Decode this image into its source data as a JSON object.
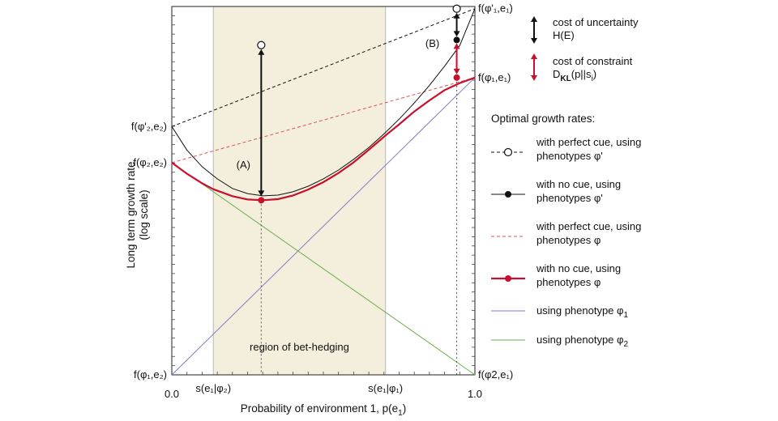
{
  "chart_data": {
    "type": "line",
    "xlabel": "Probability of environment 1, p(e",
    "xlabel_sub": "1",
    "xlabel_tail": ")",
    "ylabel_line1": "Long term growth rate",
    "ylabel_line2": "(log scale)",
    "xlim": [
      0,
      1
    ],
    "ylim": [
      0,
      1
    ],
    "x_ticks": [
      {
        "value": 0.0,
        "label": "0.0"
      },
      {
        "value": 1.0,
        "label": "1.0"
      }
    ],
    "bet_hedging_region": {
      "x_start": 0.137,
      "x_end": 0.705,
      "start_label": "s(e₁|φ₂)",
      "end_label": "s(e₁|φ₁)",
      "region_label": "region of bet-hedging",
      "color": "#f3efdc",
      "border_color": "#b8b8b8"
    },
    "left_axis_labels": [
      {
        "text": "f(φ'₂,e₂)",
        "y": 0.674
      },
      {
        "text": "f(φ₂,e₂)",
        "y": 0.576
      },
      {
        "text": "f(φ₁,e₂)",
        "y": 0.0
      }
    ],
    "right_axis_labels": [
      {
        "text": "f(φ'₁,e₁)",
        "y": 0.994
      },
      {
        "text": "f(φ₁,e₁)",
        "y": 0.807
      },
      {
        "text": "f(φ2,e₁)",
        "y": 0.0
      }
    ],
    "series": [
      {
        "name": "with perfect cue, using phenotypes φ'",
        "style": "dashed",
        "color": "#111111",
        "marker": "open-circle",
        "x": [
          0,
          1
        ],
        "y": [
          0.674,
          0.994
        ]
      },
      {
        "name": "with no cue, using phenotypes φ'",
        "style": "solid-thin",
        "color": "#111111",
        "marker": "filled-circle",
        "x": [
          0.0,
          0.05,
          0.1,
          0.15,
          0.2,
          0.25,
          0.3,
          0.35,
          0.4,
          0.45,
          0.5,
          0.55,
          0.6,
          0.65,
          0.7,
          0.75,
          0.8,
          0.85,
          0.9,
          0.95,
          1.0
        ],
        "y": [
          0.674,
          0.61,
          0.565,
          0.532,
          0.506,
          0.492,
          0.486,
          0.488,
          0.497,
          0.512,
          0.532,
          0.556,
          0.585,
          0.617,
          0.654,
          0.694,
          0.738,
          0.786,
          0.838,
          0.894,
          0.994
        ]
      },
      {
        "name": "with perfect cue, using phenotypes φ",
        "style": "dashed",
        "color": "#e05050",
        "x": [
          0,
          1
        ],
        "y": [
          0.576,
          0.807
        ]
      },
      {
        "name": "with no cue, using phenotypes φ",
        "style": "solid-thick",
        "color": "#c8102e",
        "marker": "filled-circle",
        "x": [
          0.0,
          0.05,
          0.1,
          0.137,
          0.2,
          0.25,
          0.3,
          0.35,
          0.4,
          0.45,
          0.5,
          0.55,
          0.6,
          0.65,
          0.705,
          0.75,
          0.8,
          0.85,
          0.9,
          0.95,
          1.0
        ],
        "y": [
          0.576,
          0.546,
          0.52,
          0.504,
          0.485,
          0.476,
          0.474,
          0.477,
          0.487,
          0.503,
          0.523,
          0.548,
          0.577,
          0.611,
          0.65,
          0.68,
          0.715,
          0.745,
          0.773,
          0.792,
          0.807
        ]
      },
      {
        "name": "using phenotype φ1",
        "style": "solid-thin",
        "color": "#7b7fc4",
        "x": [
          0,
          1
        ],
        "y": [
          0.0,
          0.807
        ]
      },
      {
        "name": "using phenotype φ2",
        "style": "solid-thin",
        "color": "#6ab04c",
        "x": [
          0,
          1
        ],
        "y": [
          0.576,
          0.0
        ]
      }
    ],
    "annotations": [
      {
        "id": "A",
        "label": "(A)",
        "x": 0.295,
        "y_top": 0.895,
        "y_bottom": 0.474,
        "open_marker_y": 0.895,
        "dot_y": 0.474,
        "arrow_color": "#111111"
      },
      {
        "id": "B",
        "label": "(B)",
        "x": 0.94,
        "y_top": 0.994,
        "y_mid": 0.909,
        "y_bottom": 0.807,
        "arrow_color_top": "#111111",
        "arrow_color_bottom": "#c8102e"
      }
    ],
    "legend": {
      "position": "right",
      "key_items": [
        {
          "text": "cost of uncertainty",
          "text2": "H(E)",
          "color": "#111111"
        },
        {
          "text": "cost of constraint",
          "text2_main": "D",
          "text2_sub": "KL",
          "text2_tail": "(p||s",
          "text2_sub2": "i",
          "text2_end": ")",
          "color": "#c8102e"
        }
      ],
      "title": "Optimal growth rates:",
      "entries": [
        {
          "line1": "with perfect cue, using",
          "line2": "phenotypes φ'",
          "style": "dashed",
          "color": "#111111",
          "marker": "open"
        },
        {
          "line1": "with no cue, using",
          "line2": "phenotypes φ'",
          "style": "solid",
          "color": "#111111",
          "marker": "filled"
        },
        {
          "line1": "with perfect cue, using",
          "line2": "phenotypes φ",
          "style": "dashed",
          "color": "#e05050",
          "marker": "none"
        },
        {
          "line1": "with no cue, using",
          "line2": "phenotypes φ",
          "style": "thick",
          "color": "#c8102e",
          "marker": "filled"
        },
        {
          "line1": "using phenotype φ",
          "line1_sub": "1",
          "line2": "",
          "style": "solid",
          "color": "#7b7fc4",
          "marker": "none"
        },
        {
          "line1": "using phenotype φ",
          "line1_sub": "2",
          "line2": "",
          "style": "solid",
          "color": "#6ab04c",
          "marker": "none"
        }
      ]
    }
  }
}
